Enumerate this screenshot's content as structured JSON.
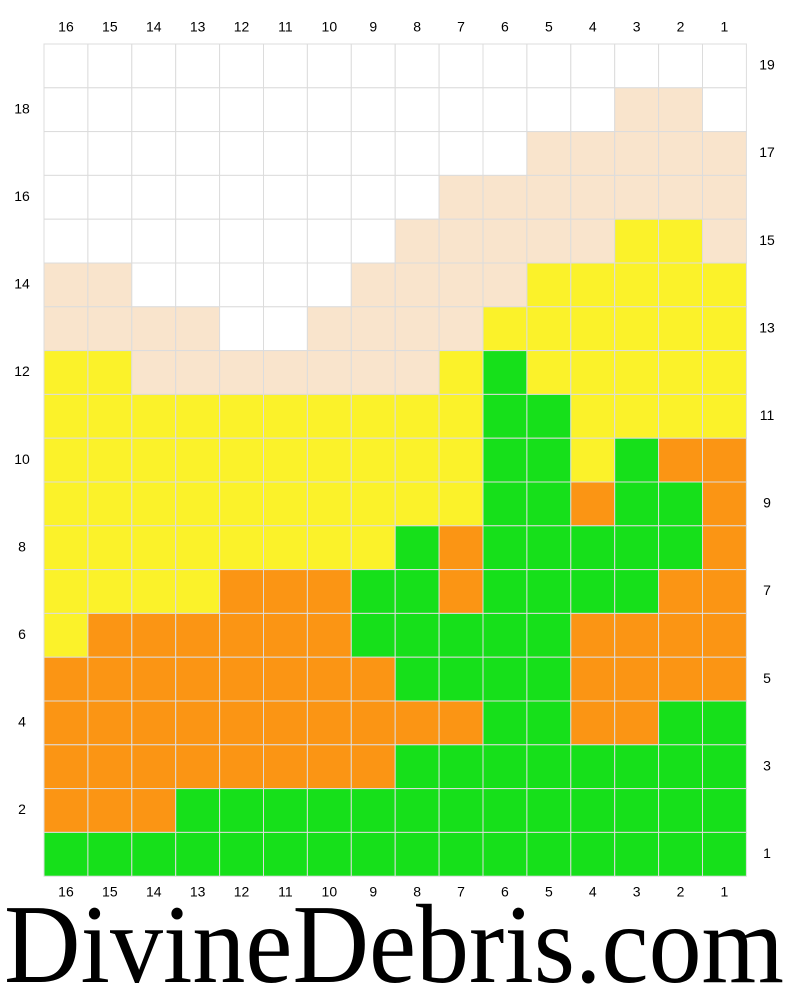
{
  "column_labels": [
    16,
    15,
    14,
    13,
    12,
    11,
    10,
    9,
    8,
    7,
    6,
    5,
    4,
    3,
    2,
    1
  ],
  "left_row_labels": [
    18,
    16,
    14,
    12,
    10,
    8,
    6,
    4,
    2
  ],
  "right_row_labels": [
    19,
    17,
    15,
    13,
    11,
    9,
    7,
    5,
    3,
    1
  ],
  "palette": {
    "W": "#ffffff",
    "T": "#f9e4cc",
    "Y": "#fbf22a",
    "O": "#fb9514",
    "G": "#16e01a"
  },
  "grid": [
    [
      "W",
      "W",
      "W",
      "W",
      "W",
      "W",
      "W",
      "W",
      "W",
      "W",
      "W",
      "W",
      "W",
      "W",
      "W",
      "W"
    ],
    [
      "W",
      "W",
      "W",
      "W",
      "W",
      "W",
      "W",
      "W",
      "W",
      "W",
      "W",
      "W",
      "W",
      "T",
      "T",
      "W"
    ],
    [
      "W",
      "W",
      "W",
      "W",
      "W",
      "W",
      "W",
      "W",
      "W",
      "W",
      "W",
      "T",
      "T",
      "T",
      "T",
      "T"
    ],
    [
      "W",
      "W",
      "W",
      "W",
      "W",
      "W",
      "W",
      "W",
      "W",
      "T",
      "T",
      "T",
      "T",
      "T",
      "T",
      "T"
    ],
    [
      "W",
      "W",
      "W",
      "W",
      "W",
      "W",
      "W",
      "W",
      "T",
      "T",
      "T",
      "T",
      "T",
      "Y",
      "Y",
      "T"
    ],
    [
      "T",
      "T",
      "W",
      "W",
      "W",
      "W",
      "W",
      "T",
      "T",
      "T",
      "T",
      "Y",
      "Y",
      "Y",
      "Y",
      "Y"
    ],
    [
      "T",
      "T",
      "T",
      "T",
      "W",
      "W",
      "T",
      "T",
      "T",
      "T",
      "Y",
      "Y",
      "Y",
      "Y",
      "Y",
      "Y"
    ],
    [
      "Y",
      "Y",
      "T",
      "T",
      "T",
      "T",
      "T",
      "T",
      "T",
      "Y",
      "G",
      "Y",
      "Y",
      "Y",
      "Y",
      "Y"
    ],
    [
      "Y",
      "Y",
      "Y",
      "Y",
      "Y",
      "Y",
      "Y",
      "Y",
      "Y",
      "Y",
      "G",
      "G",
      "Y",
      "Y",
      "Y",
      "Y"
    ],
    [
      "Y",
      "Y",
      "Y",
      "Y",
      "Y",
      "Y",
      "Y",
      "Y",
      "Y",
      "Y",
      "G",
      "G",
      "Y",
      "G",
      "O",
      "O"
    ],
    [
      "Y",
      "Y",
      "Y",
      "Y",
      "Y",
      "Y",
      "Y",
      "Y",
      "Y",
      "Y",
      "G",
      "G",
      "O",
      "G",
      "G",
      "O"
    ],
    [
      "Y",
      "Y",
      "Y",
      "Y",
      "Y",
      "Y",
      "Y",
      "Y",
      "G",
      "O",
      "G",
      "G",
      "G",
      "G",
      "G",
      "O"
    ],
    [
      "Y",
      "Y",
      "Y",
      "Y",
      "O",
      "O",
      "O",
      "G",
      "G",
      "O",
      "G",
      "G",
      "G",
      "G",
      "O",
      "O"
    ],
    [
      "Y",
      "O",
      "O",
      "O",
      "O",
      "O",
      "O",
      "G",
      "G",
      "G",
      "G",
      "G",
      "O",
      "O",
      "O",
      "O"
    ],
    [
      "O",
      "O",
      "O",
      "O",
      "O",
      "O",
      "O",
      "O",
      "G",
      "G",
      "G",
      "G",
      "O",
      "O",
      "O",
      "O"
    ],
    [
      "O",
      "O",
      "O",
      "O",
      "O",
      "O",
      "O",
      "O",
      "O",
      "O",
      "G",
      "G",
      "O",
      "O",
      "G",
      "G"
    ],
    [
      "O",
      "O",
      "O",
      "O",
      "O",
      "O",
      "O",
      "O",
      "G",
      "G",
      "G",
      "G",
      "G",
      "G",
      "G",
      "G"
    ],
    [
      "O",
      "O",
      "O",
      "G",
      "G",
      "G",
      "G",
      "G",
      "G",
      "G",
      "G",
      "G",
      "G",
      "G",
      "G",
      "G"
    ],
    [
      "G",
      "G",
      "G",
      "G",
      "G",
      "G",
      "G",
      "G",
      "G",
      "G",
      "G",
      "G",
      "G",
      "G",
      "G",
      "G"
    ]
  ],
  "footer": "DivineDebris.com"
}
